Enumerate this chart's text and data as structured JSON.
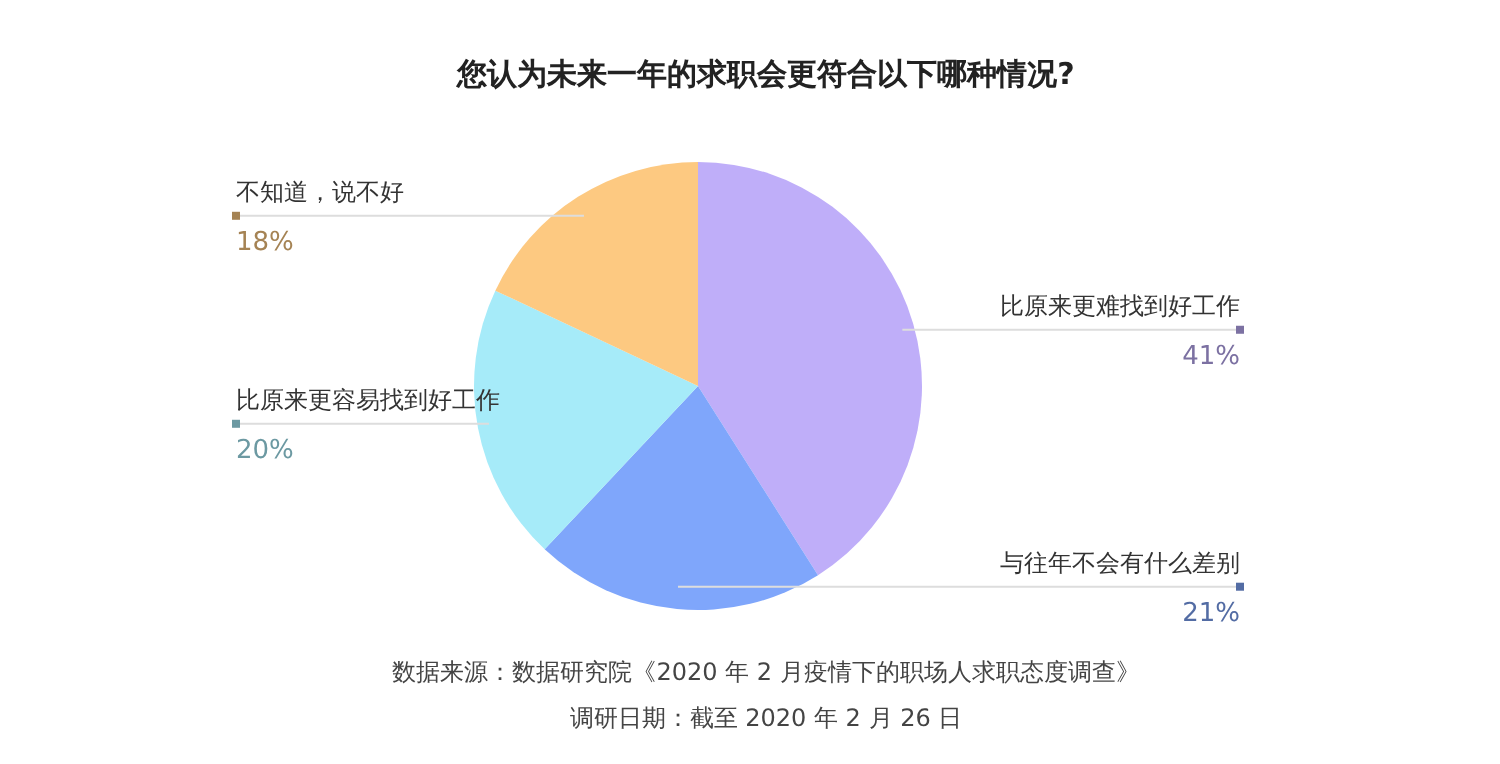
{
  "chart_data": {
    "type": "pie",
    "title": "您认为未来一年的求职会更符合以下哪种情况?",
    "categories": [
      "比原来更难找到好工作",
      "与往年不会有什么差别",
      "比原来更容易找到好工作",
      "不知道，说不好"
    ],
    "values": [
      41,
      21,
      20,
      18
    ],
    "value_labels": [
      "41%",
      "21%",
      "20%",
      "18%"
    ],
    "colors": [
      "#bfaef9",
      "#7fa6fb",
      "#a6ebf9",
      "#fdc981"
    ],
    "annotations": [
      "数据来源：数据研究院《2020 年 2 月疫情下的职场人求职态度调查》",
      "调研日期：截至 2020 年 2 月 26 日"
    ]
  }
}
